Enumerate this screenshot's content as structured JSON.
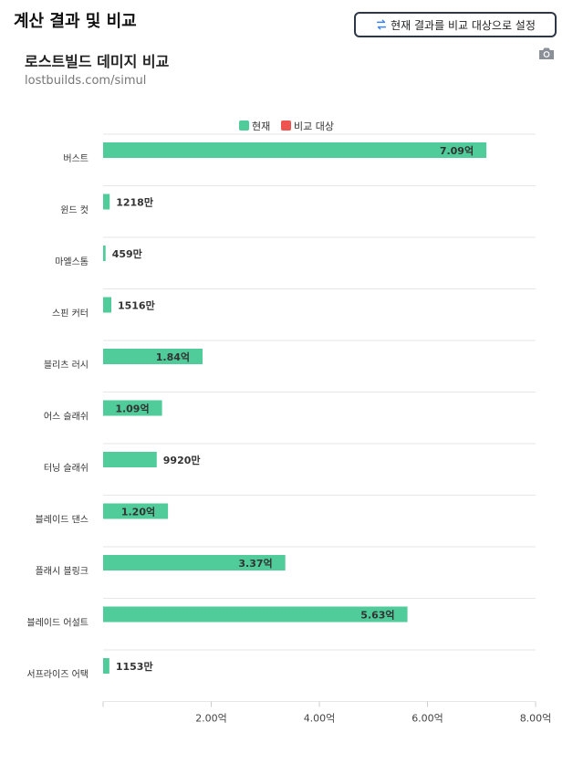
{
  "header": {
    "title": "계산 결과 및 비교",
    "compare_button_label": "현재 결과를 비교 대상으로 설정"
  },
  "colors": {
    "current": "#4fcc9a",
    "compare": "#ef5350",
    "gridline": "#e6e6e6"
  },
  "icons": {
    "compare_button": "swap-arrows-icon",
    "export": "camera-icon"
  },
  "chart_data": {
    "type": "bar",
    "orientation": "horizontal",
    "title": "로스트빌드 데미지 비교",
    "subtitle": "lostbuilds.com/simul",
    "legend": {
      "position": "top",
      "items": [
        "현재",
        "비교 대상"
      ]
    },
    "categories": [
      "버스트",
      "윈드 컷",
      "마엘스톰",
      "스핀 커터",
      "블리츠 러시",
      "어스 슬래쉬",
      "터닝 슬래쉬",
      "블레이드 댄스",
      "플래시 블링크",
      "블레이드 어설트",
      "서프라이즈 어택"
    ],
    "series": [
      {
        "name": "현재",
        "values": [
          709000000,
          12180000,
          4590000,
          15160000,
          184000000,
          109000000,
          99200000,
          120000000,
          337000000,
          563000000,
          11530000
        ],
        "labels": [
          "7.09억",
          "1218만",
          "459만",
          "1516만",
          "1.84억",
          "1.09억",
          "9920만",
          "1.20억",
          "3.37억",
          "5.63억",
          "1153만"
        ]
      }
    ],
    "xlim": [
      0,
      800000000
    ],
    "xticks": [
      200000000,
      400000000,
      600000000,
      800000000
    ],
    "xtick_labels": [
      "2.00억",
      "4.00억",
      "6.00억",
      "8.00억"
    ],
    "grid": true
  }
}
